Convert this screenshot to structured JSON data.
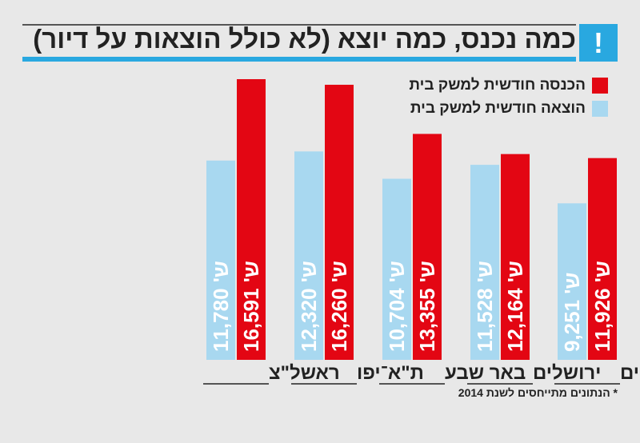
{
  "title": "כמה נכנס, כמה יוצא (לא כולל הוצאות על דיור)",
  "alert_glyph": "!",
  "currency_prefix": "ש' ",
  "footnote": "* הנתונים מתייחסים לשנת 2014",
  "colors": {
    "income": "#e30613",
    "expense": "#a8d8f0",
    "accent": "#29a8e0"
  },
  "chart_data": {
    "type": "bar",
    "title": "כמה נכנס, כמה יוצא (לא כולל הוצאות על דיור)",
    "categories": [
      "ראשל\"צ",
      "ת\"א־יפו",
      "באר שבע",
      "ירושלים",
      "בת ים"
    ],
    "series": [
      {
        "name": "הכנסה חודשית למשק בית",
        "values": [
          16591,
          16260,
          13355,
          12164,
          11926
        ],
        "labels": [
          "16,591",
          "16,260",
          "13,355",
          "12,164",
          "11,926"
        ]
      },
      {
        "name": "הוצאה חודשית למשק בית",
        "values": [
          11780,
          12320,
          10704,
          11528,
          9251
        ],
        "labels": [
          "11,780",
          "12,320",
          "10,704",
          "11,528",
          "9,251"
        ]
      }
    ],
    "ylim": [
      0,
      17000
    ],
    "xlabel": "",
    "ylabel": "",
    "legend": "top-right"
  }
}
